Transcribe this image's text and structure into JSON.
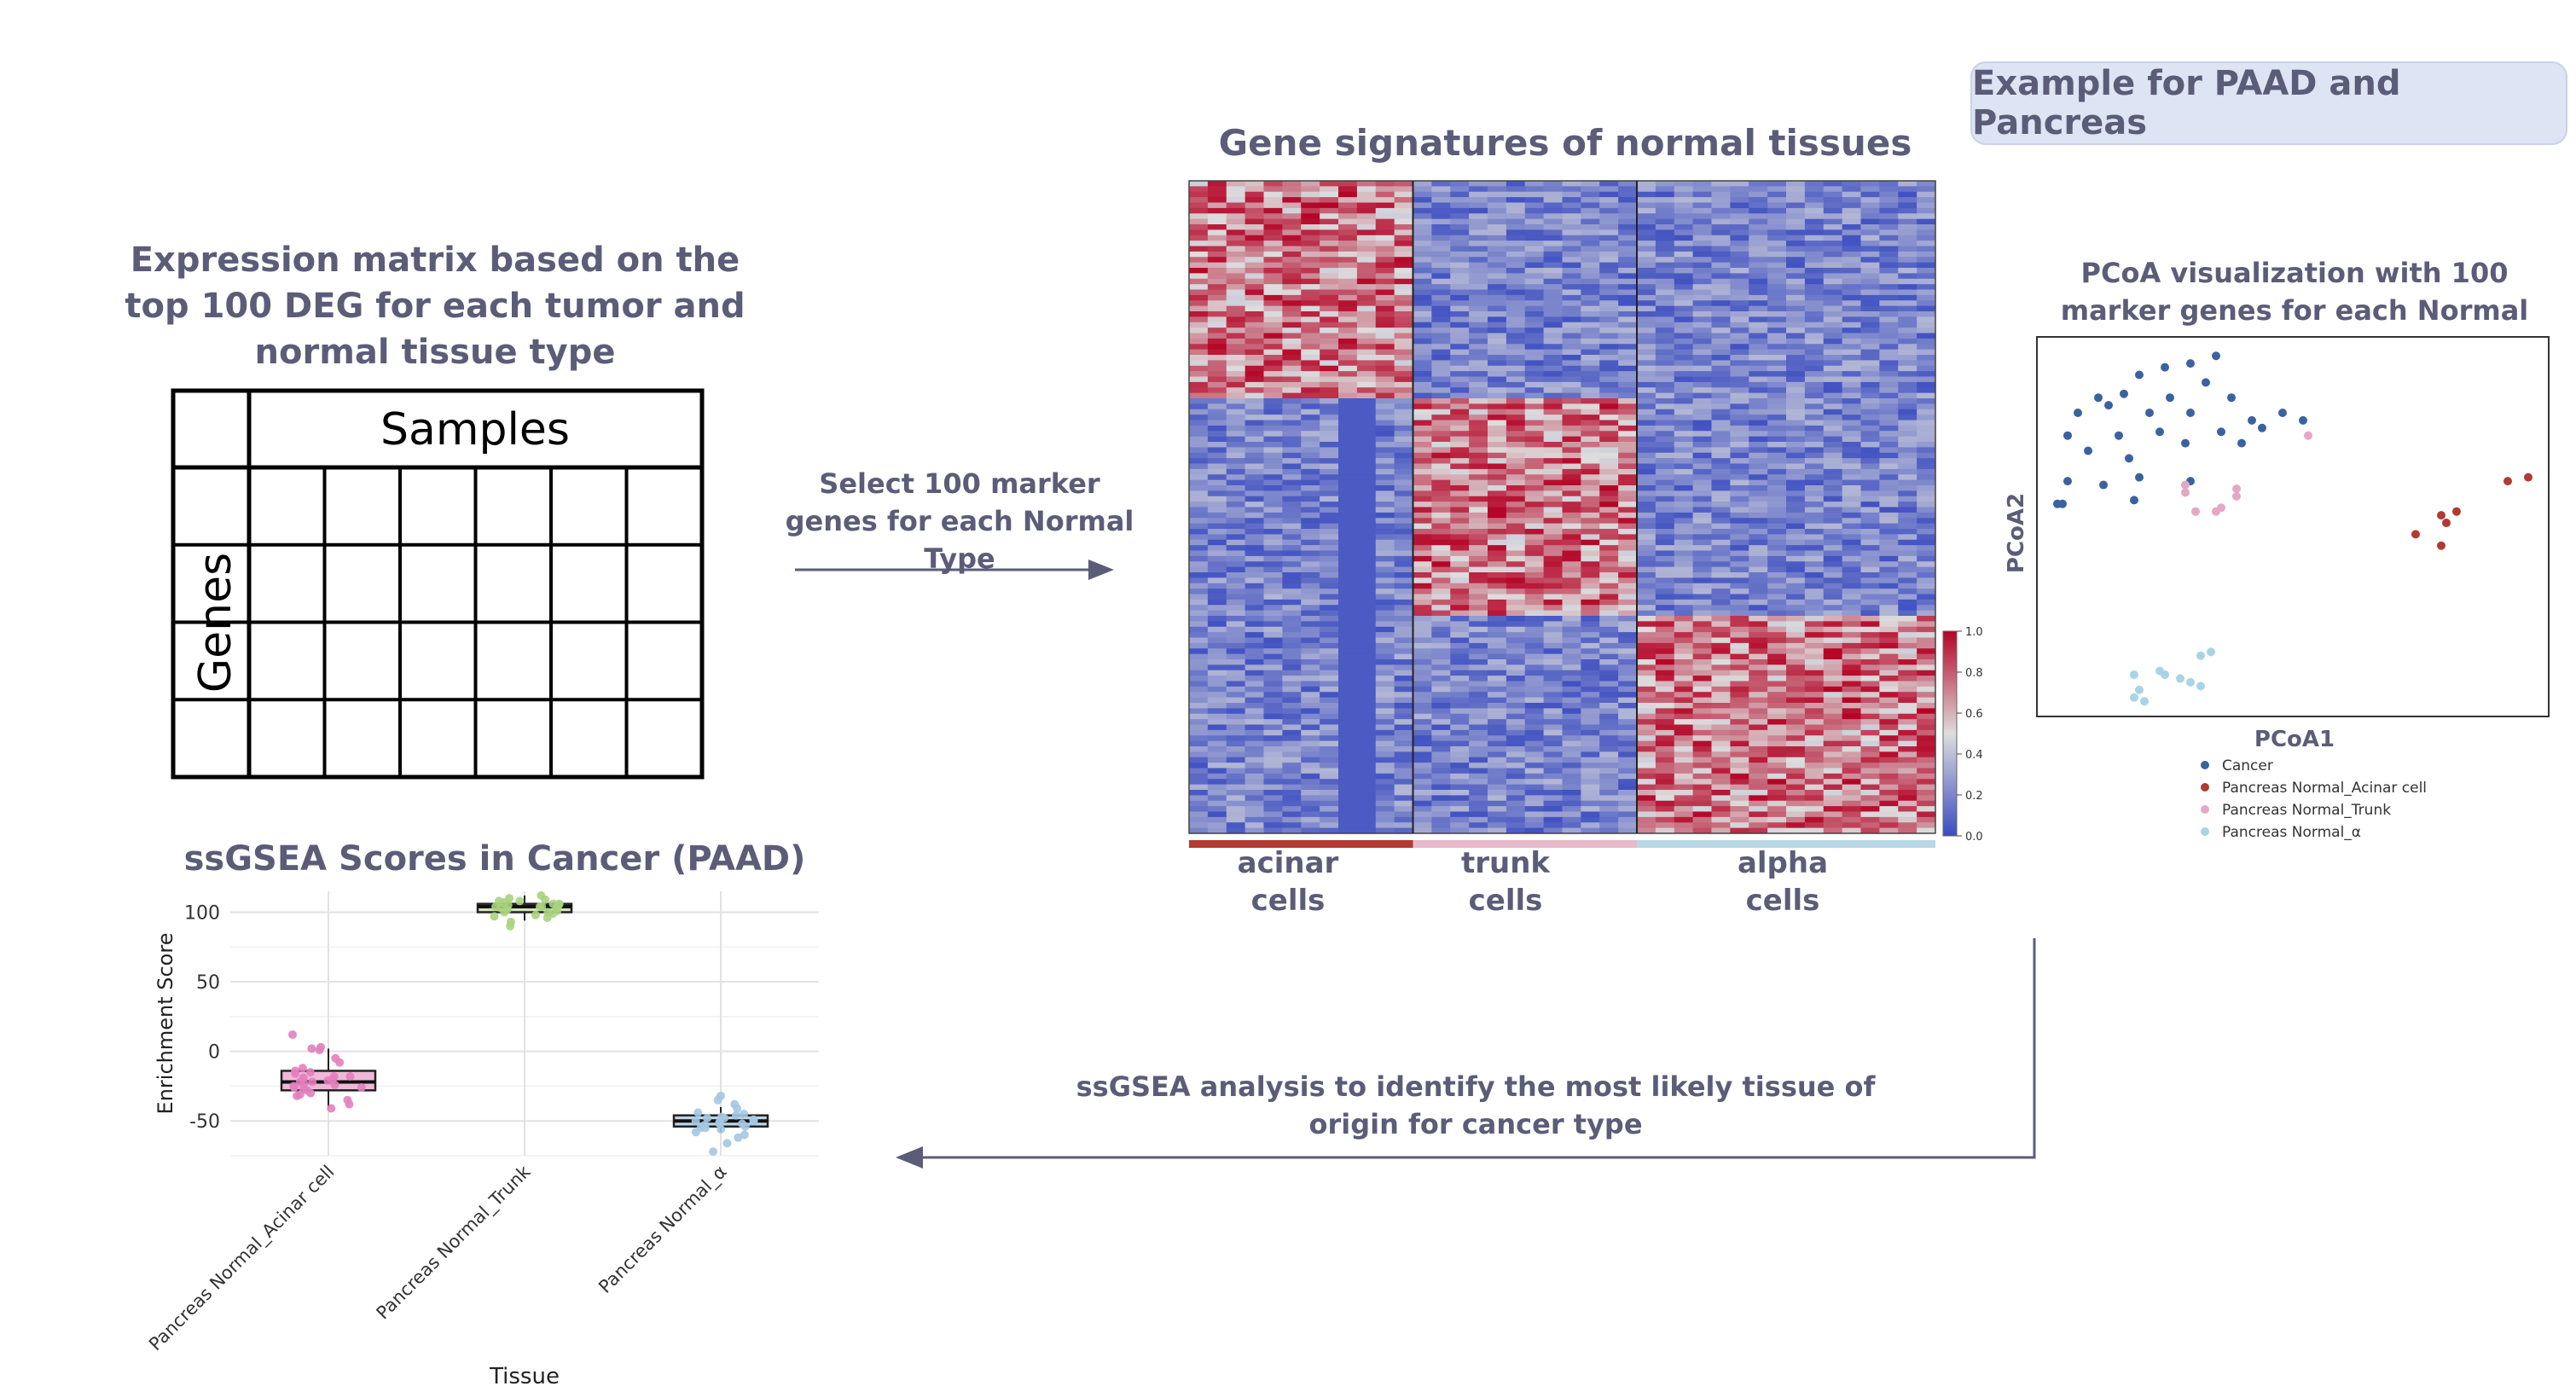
{
  "example_label": "Example for PAAD and Pancreas",
  "matrix": {
    "title": "Expression matrix based on the top 100 DEG for each tumor and normal tissue type",
    "col_header": "Samples",
    "row_header": "Genes"
  },
  "step_select": "Select 100 marker genes for each Normal Type",
  "heatmap": {
    "title": "Gene signatures of normal tissues",
    "groups": [
      {
        "label": "acinar cells",
        "color": "#b23a32"
      },
      {
        "label": "trunk cells",
        "color": "#e8b8cb"
      },
      {
        "label": "alpha cells",
        "color": "#b8d8e6"
      }
    ],
    "colorbar_ticks": [
      "1.0",
      "0.8",
      "0.6",
      "0.4",
      "0.2",
      "0.0"
    ],
    "colors": {
      "low": "#3b4cc0",
      "mid": "#dddddd",
      "high": "#b40426"
    }
  },
  "pcoa": {
    "title": "PCoA visualization with 100 marker genes for each Normal Type",
    "xlabel": "PCoA1",
    "ylabel": "PCoA2",
    "legend": [
      {
        "label": "Cancer",
        "color": "#3b62a0"
      },
      {
        "label": "Pancreas Normal_Acinar cell",
        "color": "#b23a32"
      },
      {
        "label": "Pancreas Normal_Trunk",
        "color": "#e4a8c4"
      },
      {
        "label": "Pancreas Normal_α",
        "color": "#a9d4e6"
      }
    ]
  },
  "step_ssgsea": "ssGSEA analysis to identify the most likely tissue of origin for cancer type",
  "chart_data": {
    "type": "box",
    "title": "ssGSEA Scores in Cancer (PAAD)",
    "xlabel": "Tissue",
    "ylabel": "Enrichment Score",
    "categories": [
      "Pancreas Normal_Acinar cell",
      "Pancreas Normal_Trunk",
      "Pancreas Normal_α"
    ],
    "y_ticks": [
      "100",
      "50",
      "0",
      "-50"
    ],
    "ylim": [
      -75,
      115
    ],
    "boxes": [
      {
        "q1": -28,
        "median": -22,
        "q3": -14,
        "whisker_low": -40,
        "whisker_high": 2,
        "color": "#f0b8d8"
      },
      {
        "q1": 100,
        "median": 104,
        "q3": 106,
        "whisker_low": 94,
        "whisker_high": 112,
        "color": "#d4e6b8"
      },
      {
        "q1": -54,
        "median": -50,
        "q3": -46,
        "whisker_low": -58,
        "whisker_high": -40,
        "color": "#bcd6ea"
      }
    ],
    "points": [
      {
        "series": 0,
        "values": [
          12,
          3,
          2,
          1,
          -5,
          -8,
          -12,
          -14,
          -16,
          -18,
          -19,
          -20,
          -21,
          -22,
          -23,
          -24,
          -25,
          -26,
          -27,
          -28,
          -30,
          -32,
          -35,
          -38,
          -41,
          -18,
          -22,
          -26,
          -15,
          -31
        ]
      },
      {
        "series": 1,
        "values": [
          112,
          110,
          109,
          108,
          107,
          106,
          106,
          105,
          105,
          104,
          104,
          103,
          103,
          102,
          101,
          100,
          99,
          98,
          96,
          93,
          90,
          108,
          104,
          100,
          97
        ]
      },
      {
        "series": 2,
        "values": [
          -32,
          -35,
          -38,
          -41,
          -44,
          -46,
          -47,
          -48,
          -49,
          -50,
          -51,
          -52,
          -53,
          -54,
          -55,
          -56,
          -58,
          -60,
          -62,
          -66,
          -72,
          -45,
          -50,
          -55,
          -48,
          -52
        ]
      }
    ],
    "point_colors": [
      "#e27fbd",
      "#a9d37e",
      "#a4c7e2"
    ]
  }
}
